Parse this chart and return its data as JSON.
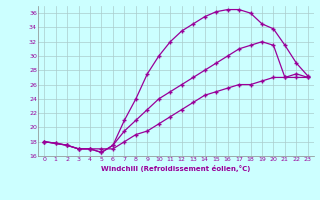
{
  "xlabel": "Windchill (Refroidissement éolien,°C)",
  "bg_color": "#ccffff",
  "line_color": "#990099",
  "grid_color": "#aacccc",
  "xlim": [
    -0.5,
    23.5
  ],
  "ylim": [
    16,
    37
  ],
  "yticks": [
    16,
    18,
    20,
    22,
    24,
    26,
    28,
    30,
    32,
    34,
    36
  ],
  "xticks": [
    0,
    1,
    2,
    3,
    4,
    5,
    6,
    7,
    8,
    9,
    10,
    11,
    12,
    13,
    14,
    15,
    16,
    17,
    18,
    19,
    20,
    21,
    22,
    23
  ],
  "curve1_x": [
    0,
    1,
    2,
    3,
    4,
    5,
    6,
    7,
    8,
    9,
    10,
    11,
    12,
    13,
    14,
    15,
    16,
    17,
    18,
    19,
    20,
    21,
    22,
    23
  ],
  "curve1_y": [
    18.0,
    17.8,
    17.5,
    17.0,
    17.0,
    16.5,
    17.5,
    19.5,
    21.0,
    22.5,
    24.0,
    25.0,
    26.0,
    27.0,
    28.0,
    29.0,
    30.0,
    31.0,
    31.5,
    32.0,
    31.5,
    27.0,
    27.5,
    27.0
  ],
  "curve2_x": [
    0,
    1,
    2,
    3,
    4,
    5,
    6,
    7,
    8,
    9,
    10,
    11,
    12,
    13,
    14,
    15,
    16,
    17,
    18,
    19,
    20,
    21,
    22,
    23
  ],
  "curve2_y": [
    18.0,
    17.8,
    17.5,
    17.0,
    17.0,
    16.5,
    17.5,
    21.0,
    24.0,
    27.5,
    30.0,
    32.0,
    33.5,
    34.5,
    35.5,
    36.2,
    36.5,
    36.5,
    36.0,
    34.5,
    33.8,
    31.5,
    29.0,
    27.2
  ],
  "curve3_x": [
    0,
    2,
    3,
    4,
    5,
    6,
    7,
    8,
    9,
    10,
    11,
    12,
    13,
    14,
    15,
    16,
    17,
    18,
    19,
    20,
    21,
    22,
    23
  ],
  "curve3_y": [
    18.0,
    17.5,
    17.0,
    17.0,
    17.0,
    17.0,
    18.0,
    19.0,
    19.5,
    20.5,
    21.5,
    22.5,
    23.5,
    24.5,
    25.0,
    25.5,
    26.0,
    26.0,
    26.5,
    27.0,
    27.0,
    27.0,
    27.0
  ]
}
